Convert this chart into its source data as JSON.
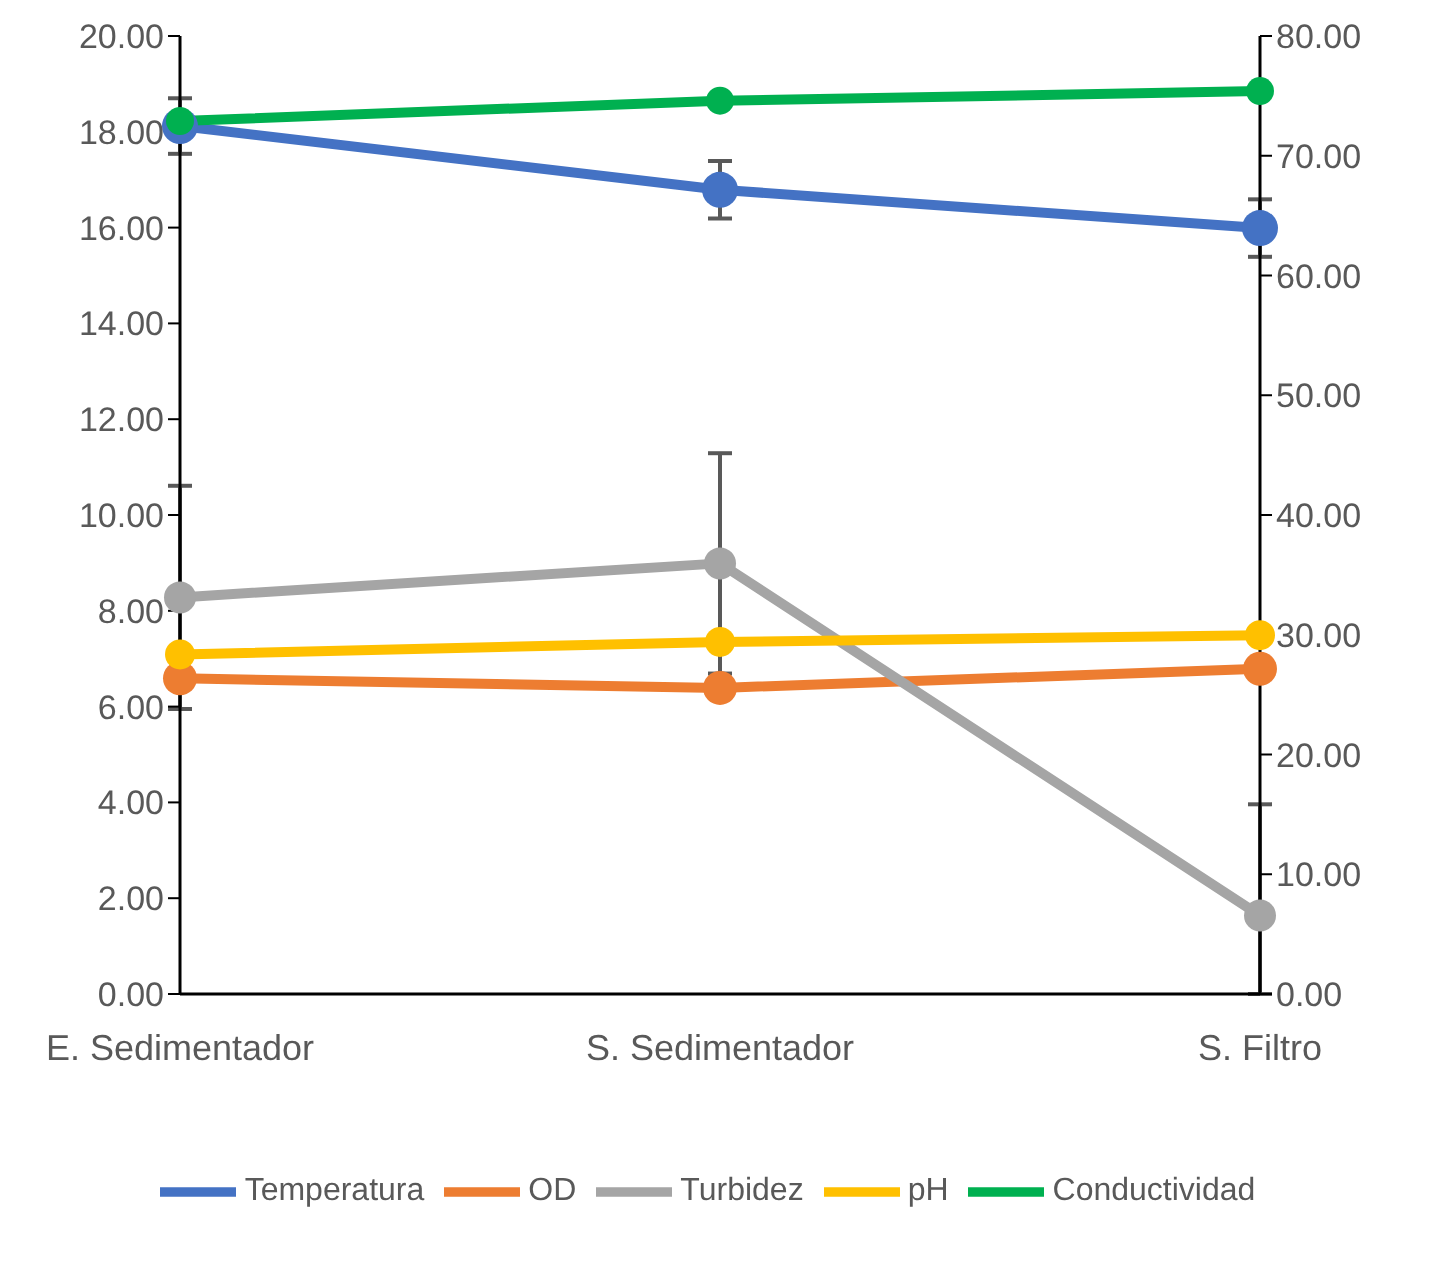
{
  "chart_data": {
    "type": "line",
    "categories": [
      "E. Sedimentador",
      "S. Sedimentador",
      "S. Filtro"
    ],
    "series": [
      {
        "name": "Temperatura",
        "color": "#4472c4",
        "values": [
          18.12,
          16.79,
          15.99
        ],
        "errors": [
          0.58,
          0.6,
          0.6
        ]
      },
      {
        "name": "OD",
        "color": "#ed7d31",
        "values": [
          6.59,
          6.39,
          6.79
        ]
      },
      {
        "name": "Turbidez",
        "color": "#a5a5a5",
        "values": [
          8.28,
          8.99,
          1.64
        ],
        "errors": [
          [
            5.95,
            10.61
          ],
          [
            6.69,
            11.29
          ],
          [
            0,
            3.96
          ]
        ]
      },
      {
        "name": "pH",
        "color": "#ffc000",
        "values": [
          7.09,
          7.35,
          7.49
        ]
      },
      {
        "name": "Conductividad",
        "color": "#00b050",
        "values": [
          72.9,
          74.6,
          75.4
        ],
        "axis": "y2"
      }
    ],
    "ylim": [
      0,
      20
    ],
    "yticks": [
      {
        "value": 0,
        "label": "0.00"
      },
      {
        "value": 2,
        "label": "2.00"
      },
      {
        "value": 4,
        "label": "4.00"
      },
      {
        "value": 6,
        "label": "6.00"
      },
      {
        "value": 8,
        "label": "8.00"
      },
      {
        "value": 10,
        "label": "10.00"
      },
      {
        "value": 12,
        "label": "12.00"
      },
      {
        "value": 14,
        "label": "14.00"
      },
      {
        "value": 16,
        "label": "16.00"
      },
      {
        "value": 18,
        "label": "18.00"
      },
      {
        "value": 20,
        "label": "20.00"
      }
    ],
    "y2lim": [
      0,
      80
    ],
    "y2ticks": [
      {
        "value": 0,
        "label": "0.00"
      },
      {
        "value": 10,
        "label": "10.00"
      },
      {
        "value": 20,
        "label": "20.00"
      },
      {
        "value": 30,
        "label": "30.00"
      },
      {
        "value": 40,
        "label": "40.00"
      },
      {
        "value": 50,
        "label": "50.00"
      },
      {
        "value": 60,
        "label": "60.00"
      },
      {
        "value": 70,
        "label": "70.00"
      },
      {
        "value": 80,
        "label": "80.00"
      }
    ],
    "legend": "bottom",
    "marker": "circle",
    "grid": false
  }
}
